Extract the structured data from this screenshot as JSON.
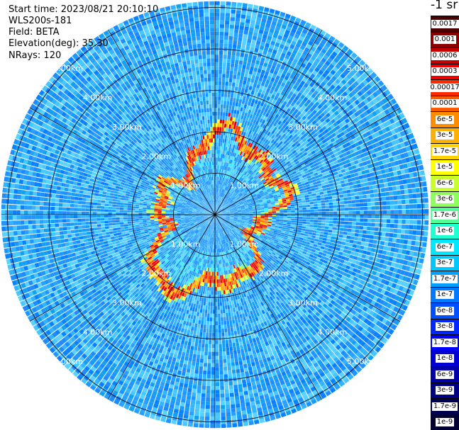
{
  "header": {
    "start_time": "Start time: 2023/08/21 20:10:10",
    "device": "WLS200s-181",
    "field": "Field: BETA",
    "elevation": "Elevation(deg): 35.30",
    "nrays": "NRays: 120"
  },
  "colorbar": {
    "units": "-1 sr",
    "labels": [
      "0.0017",
      "0.001",
      "0.0006",
      "0.0003",
      "0.00017",
      "0.0001",
      "6e-5",
      "3e-5",
      "1.7e-5",
      "1e-5",
      "6e-6",
      "3e-6",
      "1.7e-6",
      "1e-6",
      "6e-7",
      "3e-7",
      "1.7e-7",
      "1e-7",
      "6e-8",
      "3e-8",
      "1.7e-8",
      "1e-8",
      "6e-9",
      "3e-9",
      "1.7e-9",
      "1e-9"
    ],
    "colors": [
      "#4a0000",
      "#8a0000",
      "#c40000",
      "#f00000",
      "#ff2a00",
      "#ff5a00",
      "#ff8c00",
      "#ffb000",
      "#ffd200",
      "#ffff00",
      "#c8ff2a",
      "#8cff5a",
      "#50ff96",
      "#1effd2",
      "#00e6ff",
      "#00c8ff",
      "#00a0ff",
      "#0078ff",
      "#0050ff",
      "#0028ff",
      "#0000ff",
      "#0000d2",
      "#0000aa",
      "#000082",
      "#000050",
      "#000032"
    ]
  },
  "chart_data": {
    "type": "ppi_polar_scan",
    "field": "BETA",
    "elevation_deg": 35.3,
    "n_rays": 120,
    "range_rings_km": [
      1,
      2,
      3,
      4,
      5
    ],
    "range_labels": [
      "1.00km",
      "2.00km",
      "3.00km",
      "4.00km",
      "5.00km"
    ],
    "max_range_km": 5.15,
    "background_level": "1e-8 to 6e-8",
    "aerosol_layer": {
      "slant_range_km": 1.55,
      "level": "1e-5 to 0.0006"
    }
  }
}
